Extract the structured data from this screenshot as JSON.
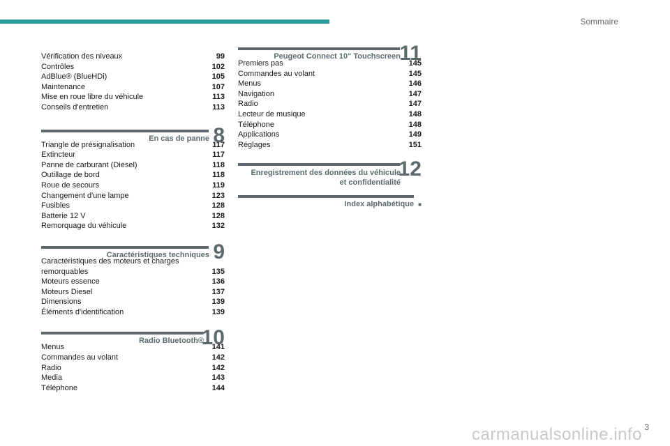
{
  "header": {
    "title": "Sommaire"
  },
  "left_column": {
    "top_entries": [
      {
        "label": "Vérification des niveaux",
        "page": "99"
      },
      {
        "label": "Contrôles",
        "page": "102"
      },
      {
        "label": "AdBlue® (BlueHDi)",
        "page": "105"
      },
      {
        "label": "Maintenance",
        "page": "107"
      },
      {
        "label": "Mise en roue libre du véhicule",
        "page": "113"
      },
      {
        "label": "Conseils d'entretien",
        "page": "113"
      }
    ],
    "sections": [
      {
        "number": "8",
        "title": "En cas de panne",
        "entries": [
          {
            "label": "Triangle de présignalisation",
            "page": "117"
          },
          {
            "label": "Extincteur",
            "page": "117"
          },
          {
            "label": "Panne de carburant (Diesel)",
            "page": "118"
          },
          {
            "label": "Outillage de bord",
            "page": "118"
          },
          {
            "label": "Roue de secours",
            "page": "119"
          },
          {
            "label": "Changement d'une lampe",
            "page": "123"
          },
          {
            "label": "Fusibles",
            "page": "128"
          },
          {
            "label": "Batterie 12 V",
            "page": "128"
          },
          {
            "label": "Remorquage du véhicule",
            "page": "132"
          }
        ]
      },
      {
        "number": "9",
        "title": "Caractéristiques techniques",
        "entries": [
          {
            "label": "Caractéristiques des moteurs et charges remorquables",
            "page": "135"
          },
          {
            "label": "Moteurs essence",
            "page": "136"
          },
          {
            "label": "Moteurs Diesel",
            "page": "137"
          },
          {
            "label": "Dimensions",
            "page": "139"
          },
          {
            "label": "Éléments d'identification",
            "page": "139"
          }
        ]
      },
      {
        "number": "10",
        "title": "Radio Bluetooth®",
        "entries": [
          {
            "label": "Menus",
            "page": "141"
          },
          {
            "label": "Commandes au volant",
            "page": "142"
          },
          {
            "label": "Radio",
            "page": "142"
          },
          {
            "label": "Media",
            "page": "143"
          },
          {
            "label": "Téléphone",
            "page": "144"
          }
        ]
      }
    ]
  },
  "right_column": {
    "sections": [
      {
        "number": "11",
        "title": "Peugeot Connect 10\" Touchscreen",
        "entries": [
          {
            "label": "Premiers pas",
            "page": "145"
          },
          {
            "label": "Commandes au volant",
            "page": "145"
          },
          {
            "label": "Menus",
            "page": "146"
          },
          {
            "label": "Navigation",
            "page": "147"
          },
          {
            "label": "Radio",
            "page": "147"
          },
          {
            "label": "Lecteur de musique",
            "page": "148"
          },
          {
            "label": "Téléphone",
            "page": "148"
          },
          {
            "label": "Applications",
            "page": "149"
          },
          {
            "label": "Réglages",
            "page": "151"
          }
        ]
      },
      {
        "number": "12",
        "title_line1": "Enregistrement des données du véhicule",
        "title_line2": "et confidentialité",
        "entries": []
      },
      {
        "title": "Index alphabétique",
        "marker": "■",
        "entries": []
      }
    ]
  },
  "footer": {
    "page_number": "3"
  },
  "watermark": "carmanualsonline.info",
  "colors": {
    "accent_bar": "#2a9a9c",
    "section": "#5c6a70"
  }
}
